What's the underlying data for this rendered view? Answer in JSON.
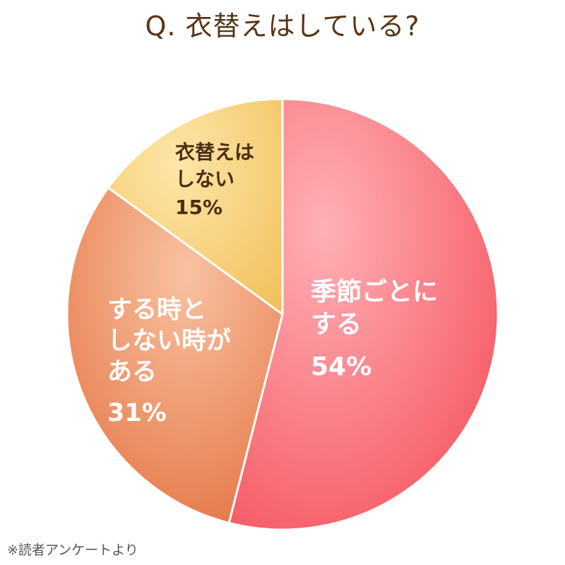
{
  "chart_data": {
    "type": "pie",
    "title": "Q. 衣替えはしている?",
    "slices": [
      {
        "label_lines": [
          "季節ごとに",
          "する"
        ],
        "value": 54,
        "value_label": "54%"
      },
      {
        "label_lines": [
          "する時と",
          "しない時が",
          "ある"
        ],
        "value": 31,
        "value_label": "31%"
      },
      {
        "label_lines": [
          "衣替えは",
          "しない"
        ],
        "value": 15,
        "value_label": "15%"
      }
    ],
    "order": "clockwise from 12 o'clock",
    "legend": "none (labels inside slices)"
  },
  "colors": {
    "slice_1": [
      "#ffb0b6",
      "#f5545e"
    ],
    "slice_2": [
      "#f8c2a2",
      "#e4703e"
    ],
    "slice_3": [
      "#fde6a8",
      "#f1bf5a"
    ],
    "title": "#5a3416",
    "label_light": "#ffffff",
    "label_dark": "#4a2e14",
    "separator": "#ffffff"
  },
  "footer": {
    "note": "※読者アンケートより"
  }
}
